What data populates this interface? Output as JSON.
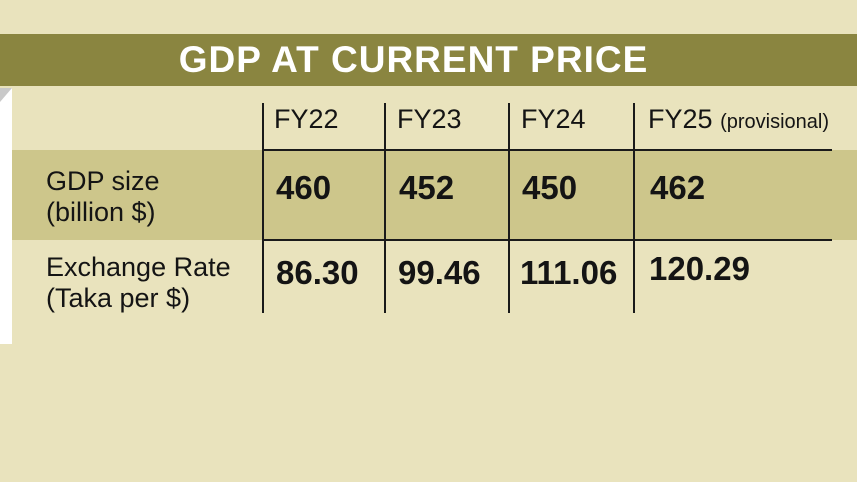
{
  "chart_data": {
    "type": "table",
    "title": "GDP AT CURRENT PRICE",
    "columns": [
      {
        "label": "FY22",
        "note": ""
      },
      {
        "label": "FY23",
        "note": ""
      },
      {
        "label": "FY24",
        "note": ""
      },
      {
        "label": "FY25",
        "note": "(provisional)"
      }
    ],
    "rows": [
      {
        "label_line1": "GDP size",
        "label_line2": "(billion $)",
        "values": [
          "460",
          "452",
          "450",
          "462"
        ]
      },
      {
        "label_line1": "Exchange Rate",
        "label_line2": "(Taka per $)",
        "values": [
          "86.30",
          "99.46",
          "111.06",
          "120.29"
        ]
      }
    ]
  }
}
